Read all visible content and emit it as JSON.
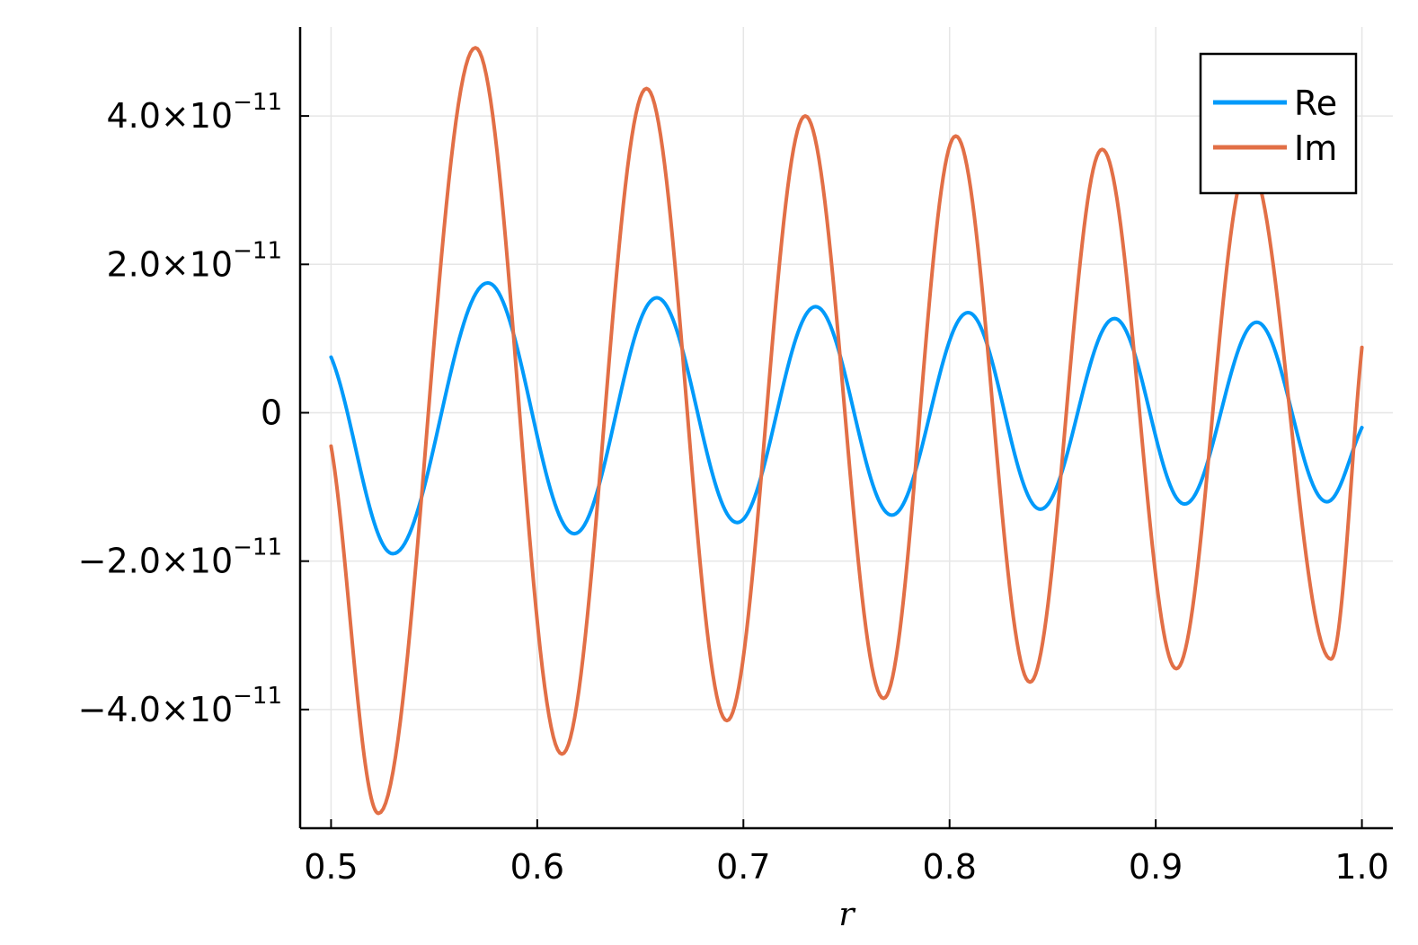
{
  "chart_data": {
    "type": "line",
    "xlabel": "r",
    "ylabel": "",
    "xlim": [
      0.485,
      1.015
    ],
    "ylim": [
      -5.6e-11,
      5.2e-11
    ],
    "grid": true,
    "legend_position": "top-right",
    "x_ticks": [
      {
        "value": 0.5,
        "label": "0.5"
      },
      {
        "value": 0.6,
        "label": "0.6"
      },
      {
        "value": 0.7,
        "label": "0.7"
      },
      {
        "value": 0.8,
        "label": "0.8"
      },
      {
        "value": 0.9,
        "label": "0.9"
      },
      {
        "value": 1.0,
        "label": "1.0"
      }
    ],
    "y_ticks": [
      {
        "value": 4e-11,
        "mantissa": "4.0×10",
        "exponent": "−11"
      },
      {
        "value": 2e-11,
        "mantissa": "2.0×10",
        "exponent": "−11"
      },
      {
        "value": 0,
        "mantissa": "0",
        "exponent": ""
      },
      {
        "value": -2e-11,
        "mantissa": "−2.0×10",
        "exponent": "−11"
      },
      {
        "value": -4e-11,
        "mantissa": "−4.0×10",
        "exponent": "−11"
      }
    ],
    "series": [
      {
        "name": "Re",
        "color": "#009AFA",
        "x": [
          0.5,
          0.53,
          0.576,
          0.618,
          0.658,
          0.697,
          0.735,
          0.772,
          0.809,
          0.844,
          0.88,
          0.914,
          0.949,
          0.983,
          1.0
        ],
        "y": [
          7.5e-12,
          -1.9e-11,
          1.75e-11,
          -1.63e-11,
          1.55e-11,
          -1.48e-11,
          1.43e-11,
          -1.38e-11,
          1.35e-11,
          -1.3e-11,
          1.27e-11,
          -1.23e-11,
          1.22e-11,
          -1.2e-11,
          -2e-12
        ]
      },
      {
        "name": "Im",
        "color": "#E26F46",
        "x": [
          0.5,
          0.523,
          0.57,
          0.612,
          0.653,
          0.692,
          0.73,
          0.768,
          0.803,
          0.839,
          0.874,
          0.91,
          0.945,
          0.985,
          1.0
        ],
        "y": [
          -4.5e-12,
          -5.4e-11,
          4.92e-11,
          -4.6e-11,
          4.37e-11,
          -4.15e-11,
          4e-11,
          -3.85e-11,
          3.73e-11,
          -3.63e-11,
          3.55e-11,
          -3.45e-11,
          3.37e-11,
          -3.32e-11,
          8.8e-12
        ]
      }
    ]
  }
}
